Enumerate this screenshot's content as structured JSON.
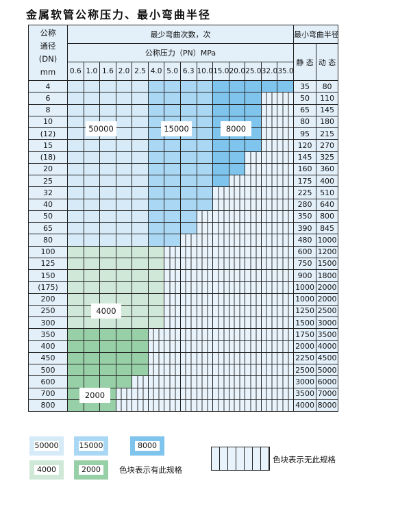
{
  "title": "金属软管公称压力、最小弯曲半径",
  "header": {
    "dn_label": "公称\n通径\n(DN)\nmm",
    "cycles_label": "最少弯曲次数，次",
    "pressure_label": "公称压力（PN）MPa",
    "radius_label": "最小弯曲半径",
    "static_label": "静 态",
    "dynamic_label": "动 态",
    "pressures": [
      "0.6",
      "1.0",
      "1.6",
      "2.0",
      "2.5",
      "4.0",
      "5.0",
      "6.3",
      "10.0",
      "15.0",
      "20.0",
      "25.0",
      "32.0",
      "35.0"
    ]
  },
  "colors": {
    "50000": "#d6eaf8",
    "15000": "#aad7f3",
    "8000": "#7fc4ec",
    "4000": "#d0e8d7",
    "2000": "#97cfa6",
    "unavailable": "#e8f3fb"
  },
  "rows": [
    {
      "dn": "4",
      "static": "35",
      "dynamic": "80",
      "cycles": [
        50000,
        50000,
        50000,
        50000,
        50000,
        15000,
        15000,
        15000,
        15000,
        8000,
        8000,
        8000,
        8000,
        8000
      ]
    },
    {
      "dn": "6",
      "static": "50",
      "dynamic": "110",
      "cycles": [
        50000,
        50000,
        50000,
        50000,
        50000,
        15000,
        15000,
        15000,
        15000,
        8000,
        8000,
        8000,
        null,
        null
      ]
    },
    {
      "dn": "8",
      "static": "65",
      "dynamic": "145",
      "cycles": [
        50000,
        50000,
        50000,
        50000,
        50000,
        15000,
        15000,
        15000,
        15000,
        8000,
        8000,
        8000,
        null,
        null
      ]
    },
    {
      "dn": "10",
      "static": "80",
      "dynamic": "180",
      "cycles": [
        50000,
        50000,
        50000,
        50000,
        50000,
        15000,
        15000,
        15000,
        15000,
        8000,
        8000,
        8000,
        null,
        null
      ]
    },
    {
      "dn": "(12)",
      "static": "95",
      "dynamic": "215",
      "cycles": [
        50000,
        50000,
        50000,
        50000,
        50000,
        15000,
        15000,
        15000,
        15000,
        8000,
        8000,
        8000,
        null,
        null
      ]
    },
    {
      "dn": "15",
      "static": "120",
      "dynamic": "270",
      "cycles": [
        50000,
        50000,
        50000,
        50000,
        50000,
        15000,
        15000,
        15000,
        15000,
        8000,
        8000,
        8000,
        null,
        null
      ]
    },
    {
      "dn": "(18)",
      "static": "145",
      "dynamic": "325",
      "cycles": [
        50000,
        50000,
        50000,
        50000,
        50000,
        15000,
        15000,
        15000,
        15000,
        8000,
        8000,
        null,
        null,
        null
      ]
    },
    {
      "dn": "20",
      "static": "160",
      "dynamic": "360",
      "cycles": [
        50000,
        50000,
        50000,
        50000,
        50000,
        15000,
        15000,
        15000,
        15000,
        8000,
        8000,
        null,
        null,
        null
      ]
    },
    {
      "dn": "25",
      "static": "175",
      "dynamic": "400",
      "cycles": [
        50000,
        50000,
        50000,
        50000,
        50000,
        15000,
        15000,
        15000,
        15000,
        8000,
        null,
        null,
        null,
        null
      ]
    },
    {
      "dn": "32",
      "static": "225",
      "dynamic": "510",
      "cycles": [
        50000,
        50000,
        50000,
        50000,
        50000,
        15000,
        15000,
        15000,
        15000,
        null,
        null,
        null,
        null,
        null
      ]
    },
    {
      "dn": "40",
      "static": "280",
      "dynamic": "640",
      "cycles": [
        50000,
        50000,
        50000,
        50000,
        50000,
        15000,
        15000,
        15000,
        15000,
        null,
        null,
        null,
        null,
        null
      ]
    },
    {
      "dn": "50",
      "static": "350",
      "dynamic": "800",
      "cycles": [
        50000,
        50000,
        50000,
        50000,
        50000,
        15000,
        15000,
        15000,
        null,
        null,
        null,
        null,
        null,
        null
      ]
    },
    {
      "dn": "65",
      "static": "390",
      "dynamic": "845",
      "cycles": [
        50000,
        50000,
        50000,
        50000,
        50000,
        15000,
        15000,
        15000,
        null,
        null,
        null,
        null,
        null,
        null
      ]
    },
    {
      "dn": "80",
      "static": "480",
      "dynamic": "1000",
      "cycles": [
        50000,
        50000,
        50000,
        50000,
        50000,
        15000,
        15000,
        null,
        null,
        null,
        null,
        null,
        null,
        null
      ]
    },
    {
      "dn": "100",
      "static": "600",
      "dynamic": "1200",
      "cycles": [
        4000,
        4000,
        4000,
        4000,
        4000,
        4000,
        null,
        null,
        null,
        null,
        null,
        null,
        null,
        null
      ]
    },
    {
      "dn": "125",
      "static": "750",
      "dynamic": "1500",
      "cycles": [
        4000,
        4000,
        4000,
        4000,
        4000,
        4000,
        null,
        null,
        null,
        null,
        null,
        null,
        null,
        null
      ]
    },
    {
      "dn": "150",
      "static": "900",
      "dynamic": "1800",
      "cycles": [
        4000,
        4000,
        4000,
        4000,
        4000,
        4000,
        null,
        null,
        null,
        null,
        null,
        null,
        null,
        null
      ]
    },
    {
      "dn": "(175)",
      "static": "1000",
      "dynamic": "2000",
      "cycles": [
        4000,
        4000,
        4000,
        4000,
        4000,
        4000,
        null,
        null,
        null,
        null,
        null,
        null,
        null,
        null
      ]
    },
    {
      "dn": "200",
      "static": "1000",
      "dynamic": "2000",
      "cycles": [
        4000,
        4000,
        4000,
        4000,
        4000,
        4000,
        null,
        null,
        null,
        null,
        null,
        null,
        null,
        null
      ]
    },
    {
      "dn": "250",
      "static": "1250",
      "dynamic": "2500",
      "cycles": [
        4000,
        4000,
        4000,
        4000,
        4000,
        4000,
        null,
        null,
        null,
        null,
        null,
        null,
        null,
        null
      ]
    },
    {
      "dn": "300",
      "static": "1500",
      "dynamic": "3000",
      "cycles": [
        4000,
        4000,
        4000,
        4000,
        4000,
        4000,
        null,
        null,
        null,
        null,
        null,
        null,
        null,
        null
      ]
    },
    {
      "dn": "350",
      "static": "1750",
      "dynamic": "3500",
      "cycles": [
        2000,
        2000,
        2000,
        2000,
        2000,
        null,
        null,
        null,
        null,
        null,
        null,
        null,
        null,
        null
      ]
    },
    {
      "dn": "400",
      "static": "2000",
      "dynamic": "4000",
      "cycles": [
        2000,
        2000,
        2000,
        2000,
        2000,
        null,
        null,
        null,
        null,
        null,
        null,
        null,
        null,
        null
      ]
    },
    {
      "dn": "450",
      "static": "2250",
      "dynamic": "4500",
      "cycles": [
        2000,
        2000,
        2000,
        2000,
        2000,
        null,
        null,
        null,
        null,
        null,
        null,
        null,
        null,
        null
      ]
    },
    {
      "dn": "500",
      "static": "2500",
      "dynamic": "5000",
      "cycles": [
        2000,
        2000,
        2000,
        2000,
        2000,
        null,
        null,
        null,
        null,
        null,
        null,
        null,
        null,
        null
      ]
    },
    {
      "dn": "600",
      "static": "3000",
      "dynamic": "6000",
      "cycles": [
        2000,
        2000,
        2000,
        2000,
        null,
        null,
        null,
        null,
        null,
        null,
        null,
        null,
        null,
        null
      ]
    },
    {
      "dn": "700",
      "static": "3500",
      "dynamic": "7000",
      "cycles": [
        2000,
        2000,
        2000,
        null,
        null,
        null,
        null,
        null,
        null,
        null,
        null,
        null,
        null,
        null
      ]
    },
    {
      "dn": "800",
      "static": "4000",
      "dynamic": "8000",
      "cycles": [
        2000,
        2000,
        2000,
        null,
        null,
        null,
        null,
        null,
        null,
        null,
        null,
        null,
        null,
        null
      ]
    }
  ],
  "region_labels": {
    "r50000": "50000",
    "r15000": "15000",
    "r8000": "8000",
    "r4000": "4000",
    "r2000": "2000"
  },
  "legend": {
    "items": [
      "50000",
      "15000",
      "8000",
      "4000",
      "2000"
    ],
    "available_text": "色块表示有此规格",
    "unavailable_text": "色块表示无此规格"
  }
}
